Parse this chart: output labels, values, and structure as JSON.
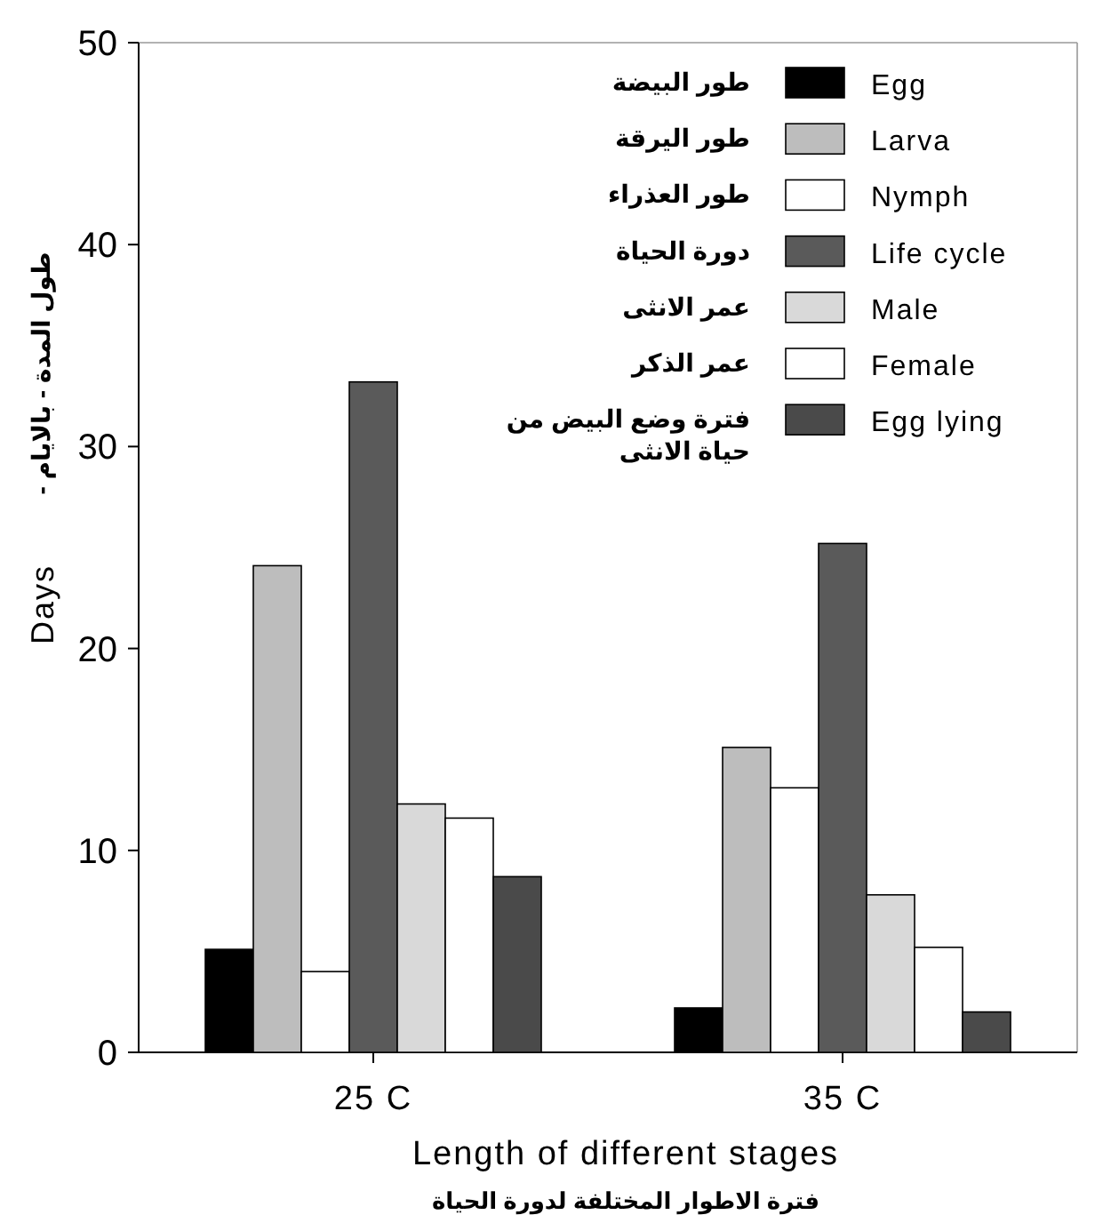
{
  "chart_data": {
    "type": "bar",
    "categories": [
      "25 C",
      "35 C"
    ],
    "series": [
      {
        "name": "Egg",
        "color": "#000000",
        "values": [
          5.1,
          2.2
        ]
      },
      {
        "name": "Larva",
        "color": "#bdbdbd",
        "values": [
          24.1,
          15.1
        ]
      },
      {
        "name": "Nymph",
        "color": "#ffffff",
        "values": [
          4.0,
          13.1
        ]
      },
      {
        "name": "Life cycle",
        "color": "#5a5a5a",
        "values": [
          33.2,
          25.2
        ]
      },
      {
        "name": "Male",
        "color": "#d9d9d9",
        "values": [
          12.3,
          7.8
        ]
      },
      {
        "name": "Female",
        "color": "#ffffff",
        "values": [
          11.6,
          5.2
        ]
      },
      {
        "name": "Egg lying",
        "color": "#4a4a4a",
        "values": [
          8.7,
          2.0
        ]
      }
    ],
    "ylabel": "Days",
    "xlabel": "Length of different stages",
    "annotations": [
      "طور البيضة",
      "طور اليرقة",
      "طور العذراء",
      "دورة الحياة",
      "عمر الانثى",
      "عمر الذكر",
      "فترة وضع البيض من\nحياة الانثى",
      "طول المدة - بالايام -",
      "فترة الاطوار المختلفة لدورة الحياة"
    ],
    "ylim": [
      0,
      50
    ],
    "yticks": [
      0,
      10,
      20,
      30,
      40,
      50
    ],
    "legend": "top right",
    "grid": false
  }
}
